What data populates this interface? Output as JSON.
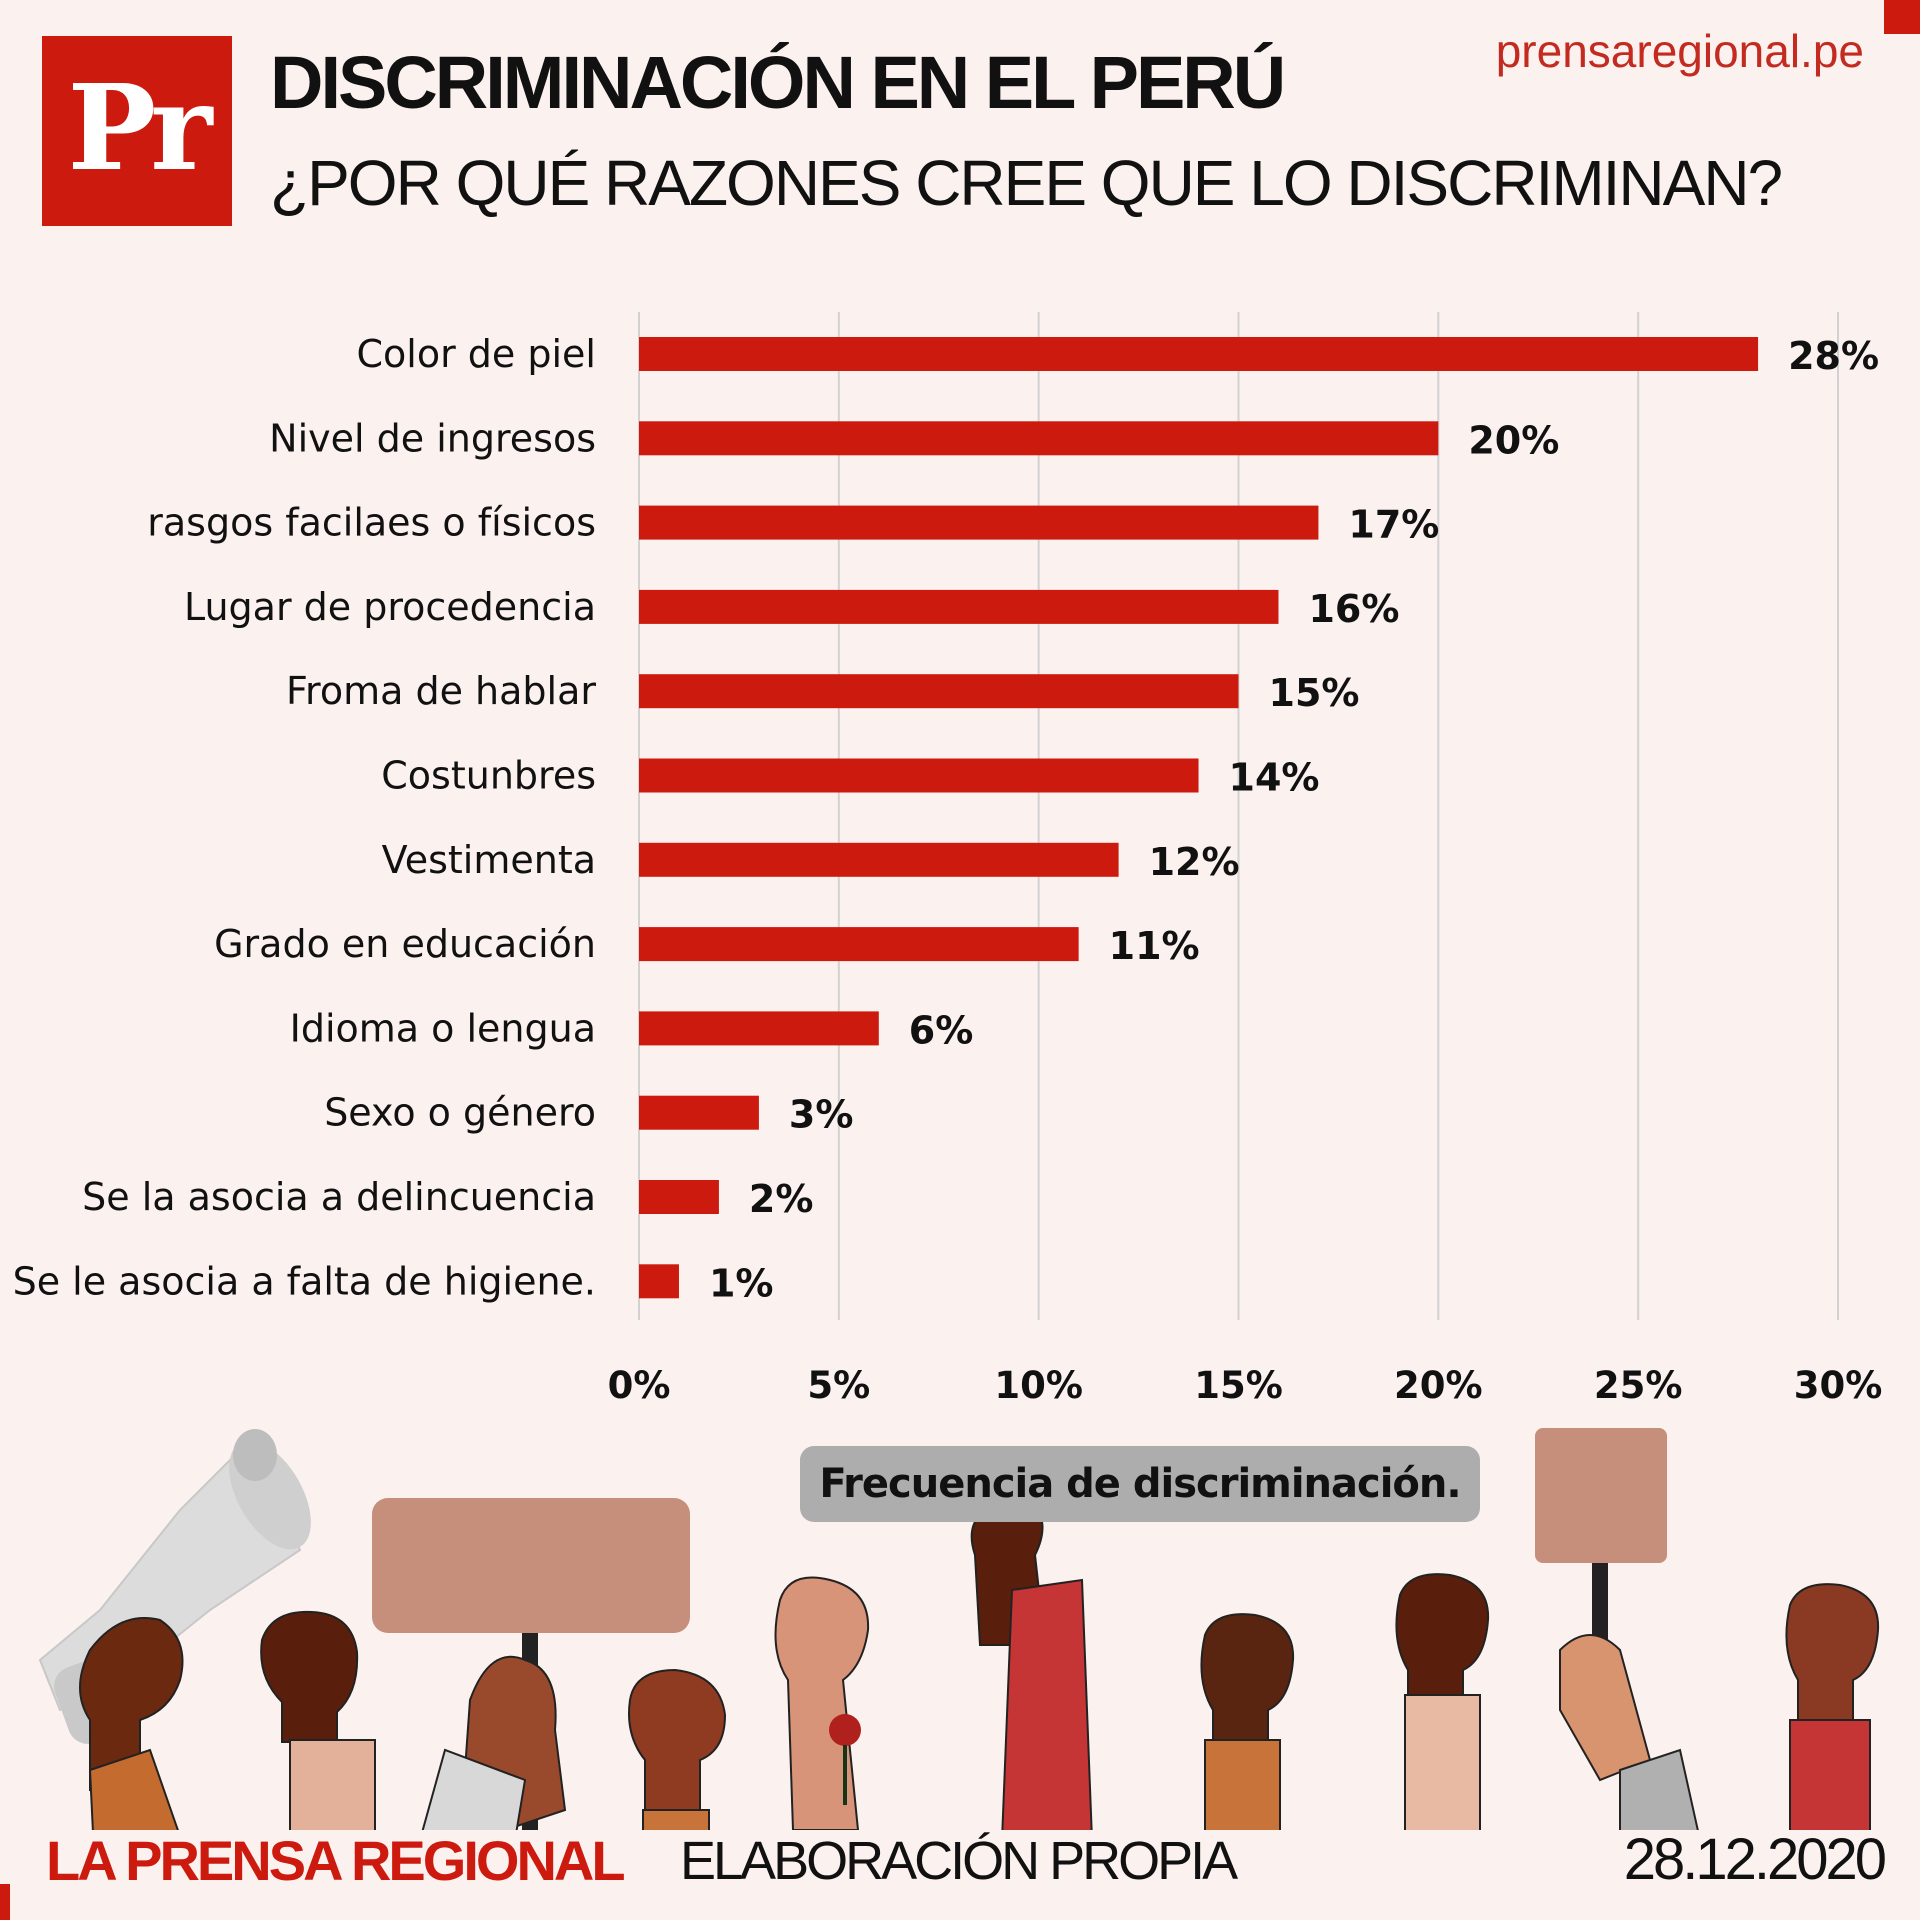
{
  "header": {
    "logo_text": "Pr",
    "title": "DISCRIMINACIÓN EN EL PERÚ",
    "subtitle": "¿POR QUÉ RAZONES CREE QUE LO DISCRIMINAN?",
    "site": "prensaregional.pe"
  },
  "colors": {
    "bar": "#cc1a0f",
    "brand": "#cc1a0f",
    "background": "#fbf1ef",
    "grid": "#d2d2d2",
    "label_box": "#adadad"
  },
  "chart_data": {
    "type": "bar",
    "orientation": "horizontal",
    "title": "¿POR QUÉ RAZONES CREE QUE LO DISCRIMINAN?",
    "xlabel": "Frecuencia de discriminación.",
    "ylabel": "",
    "categories": [
      "Color de piel",
      "Nivel de ingresos",
      "rasgos facilaes o físicos",
      "Lugar de procedencia ",
      "Froma de hablar",
      "Costunbres",
      "Vestimenta",
      "Grado en educación",
      "Idioma o lengua",
      "Sexo o género",
      "Se la asocia a delincuencia",
      "Se le asocia a falta de higiene."
    ],
    "values": [
      28,
      20,
      17,
      16,
      15,
      14,
      12,
      11,
      6,
      3,
      2,
      1
    ],
    "value_labels": [
      "28%",
      "20%",
      "17%",
      "16%",
      "15%",
      "14%",
      "12%",
      "11%",
      "6%",
      "3%",
      "2%",
      "1%"
    ],
    "xlim": [
      0,
      30
    ],
    "xticks": [
      0,
      5,
      10,
      15,
      20,
      25,
      30
    ],
    "xtick_labels": [
      "0%",
      "5%",
      "10%",
      "15%",
      "20%",
      "25%",
      "30%"
    ],
    "grid": true,
    "legend": "none"
  },
  "footer": {
    "brand": "LA PRENSA REGIONAL",
    "source": "ELABORACIÓN PROPIA",
    "date": "28.12.2020"
  },
  "illustration": {
    "icons": [
      "megaphone-icon",
      "raised-fist-icon",
      "protest-sign-icon"
    ]
  }
}
